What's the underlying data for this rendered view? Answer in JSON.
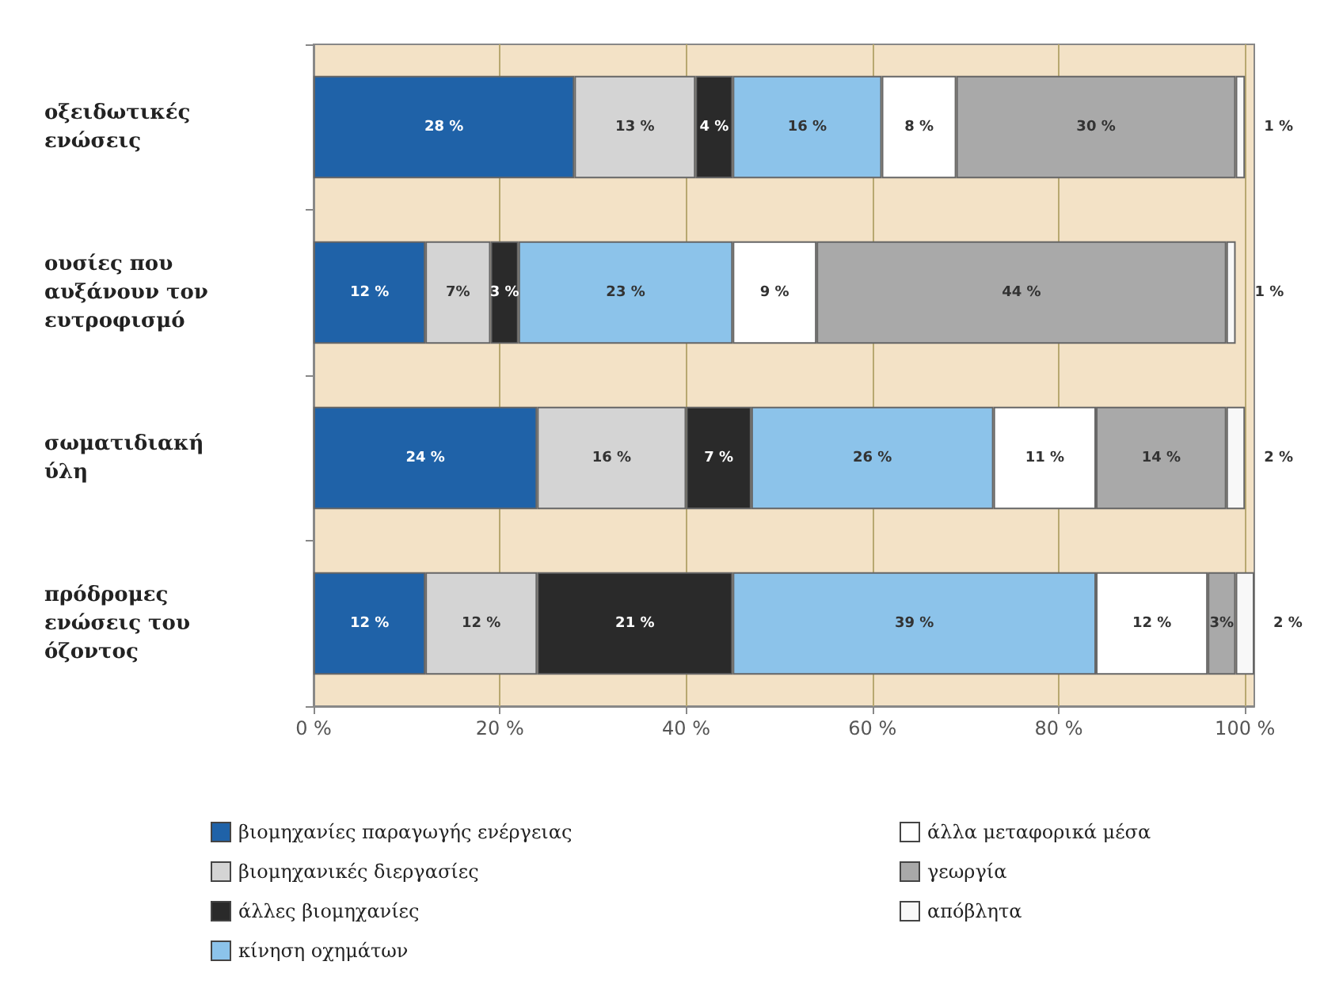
{
  "chart_data": {
    "type": "bar",
    "orientation": "horizontal",
    "stacked": true,
    "categories": [
      "οξειδωτικές\nενώσεις",
      "ουσίες που\nαυξάνουν τον\nευτροφισμό",
      "σωματιδιακή\nύλη",
      "πρόδρομες\nενώσεις του\nόζοντος"
    ],
    "series": [
      {
        "name": "βιομηχανίες παραγωγής ενέργειας",
        "color": "#1f62a8",
        "values": [
          28,
          12,
          24,
          12
        ],
        "value_labels": [
          "28 %",
          "12 %",
          "24 %",
          "12 %"
        ]
      },
      {
        "name": "βιομηχανικές διεργασίες",
        "color": "#d4d4d4",
        "values": [
          13,
          7,
          16,
          12
        ],
        "value_labels": [
          "13 %",
          "7%",
          "16 %",
          "12 %"
        ]
      },
      {
        "name": "άλλες βιομηχανίες",
        "color": "#2a2a2a",
        "values": [
          4,
          3,
          7,
          21
        ],
        "value_labels": [
          "4 %",
          "3 %",
          "7 %",
          "21 %"
        ]
      },
      {
        "name": "κίνηση οχημάτων",
        "color": "#8cc3ea",
        "values": [
          16,
          23,
          26,
          39
        ],
        "value_labels": [
          "16 %",
          "23 %",
          "26 %",
          "39 %"
        ]
      },
      {
        "name": "άλλα μεταφορικά μέσα",
        "color": "#ffffff",
        "values": [
          8,
          9,
          11,
          12
        ],
        "value_labels": [
          "8 %",
          "9 %",
          "11 %",
          "12 %"
        ]
      },
      {
        "name": "γεωργία",
        "color": "#a9a9a9",
        "values": [
          30,
          44,
          14,
          3
        ],
        "value_labels": [
          "30 %",
          "44 %",
          "14 %",
          "3%"
        ]
      },
      {
        "name": "απόβλητα",
        "color": "#f8f8f8",
        "values": [
          1,
          1,
          2,
          2
        ],
        "value_labels": [
          "1 %",
          "1 %",
          "2 %",
          "2 %"
        ]
      }
    ],
    "xlim": [
      0,
      101
    ],
    "xticks": [
      {
        "value": 0,
        "label": "0 %"
      },
      {
        "value": 20,
        "label": "20 %"
      },
      {
        "value": 40,
        "label": "40 %"
      },
      {
        "value": 60,
        "label": "60 %"
      },
      {
        "value": 80,
        "label": "80 %"
      },
      {
        "value": 100,
        "label": "100 %"
      }
    ],
    "grid": "x",
    "legend": "bottom"
  }
}
